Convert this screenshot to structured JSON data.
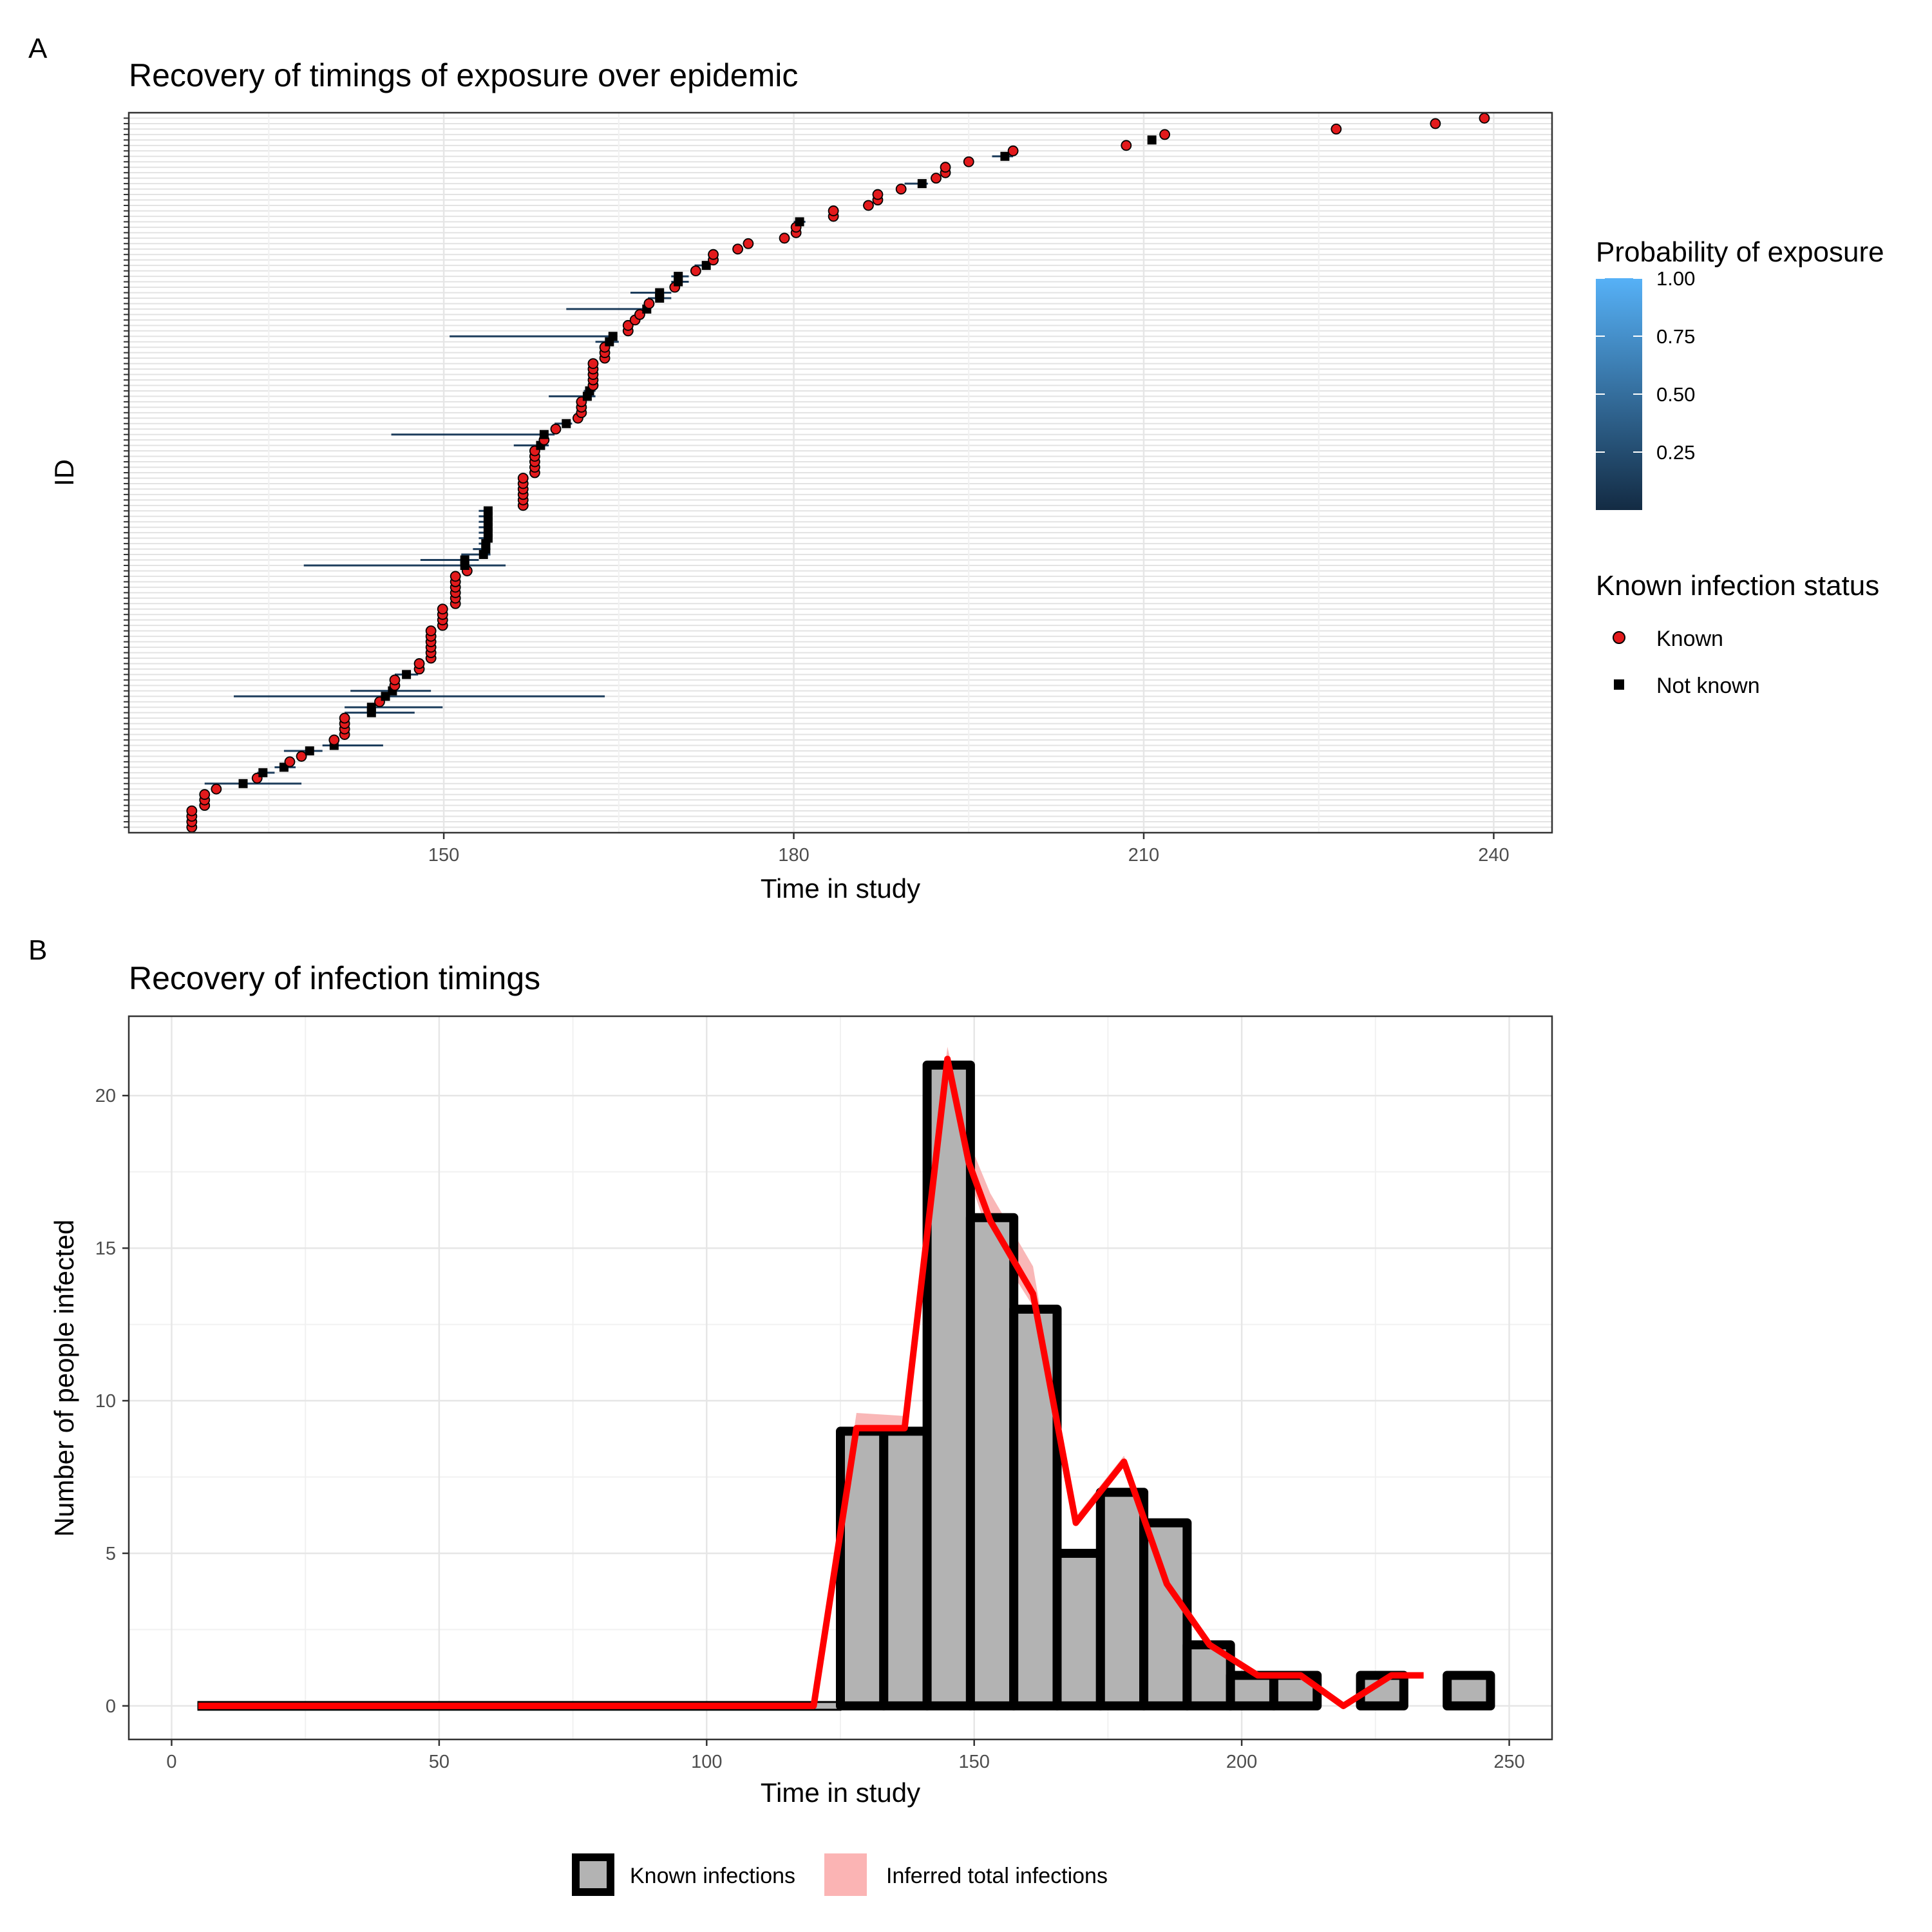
{
  "panels": {
    "a_label": "A",
    "b_label": "B"
  },
  "chart_data": [
    {
      "type": "scatter",
      "title": "Recovery of timings of exposure over epidemic",
      "xlabel": "Time in study",
      "ylabel": "ID",
      "xlim": [
        123,
        245
      ],
      "x_ticks": [
        150,
        180,
        210,
        240
      ],
      "grid": true,
      "legend_position": "right",
      "colorbar": {
        "title": "Probability of exposure",
        "ticks": [
          "1.00",
          "0.75",
          "0.50",
          "0.25"
        ],
        "low_color": "#132B43",
        "high_color": "#56B1F7"
      },
      "legend_shape": {
        "title": "Known infection status",
        "entries": [
          {
            "label": "Known",
            "shape": "circle",
            "color": "#e31a1c"
          },
          {
            "label": "Not known",
            "shape": "square",
            "color": "#000000"
          }
        ]
      },
      "points": [
        {
          "id": 1,
          "x": 128.4,
          "status": "known"
        },
        {
          "id": 2,
          "x": 128.4,
          "status": "known"
        },
        {
          "id": 3,
          "x": 128.4,
          "status": "known"
        },
        {
          "id": 4,
          "x": 128.4,
          "status": "known"
        },
        {
          "id": 5,
          "x": 129.5,
          "status": "known"
        },
        {
          "id": 6,
          "x": 129.5,
          "status": "known"
        },
        {
          "id": 7,
          "x": 129.5,
          "status": "known"
        },
        {
          "id": 8,
          "x": 130.5,
          "status": "known"
        },
        {
          "id": 9,
          "x": 132.8,
          "status": "not_known",
          "lo": 129.5,
          "hi": 137.8
        },
        {
          "id": 10,
          "x": 134.0,
          "status": "known"
        },
        {
          "id": 11,
          "x": 134.5,
          "status": "not_known",
          "lo": 134.0,
          "hi": 135.5
        },
        {
          "id": 12,
          "x": 136.3,
          "status": "not_known",
          "lo": 135.5,
          "hi": 137.3
        },
        {
          "id": 13,
          "x": 136.8,
          "status": "known"
        },
        {
          "id": 14,
          "x": 137.8,
          "status": "known"
        },
        {
          "id": 15,
          "x": 138.5,
          "status": "not_known",
          "lo": 136.3,
          "hi": 139.6
        },
        {
          "id": 16,
          "x": 140.6,
          "status": "not_known",
          "lo": 139.6,
          "hi": 144.8
        },
        {
          "id": 17,
          "x": 140.6,
          "status": "known"
        },
        {
          "id": 18,
          "x": 141.5,
          "status": "known"
        },
        {
          "id": 19,
          "x": 141.5,
          "status": "known"
        },
        {
          "id": 20,
          "x": 141.5,
          "status": "known"
        },
        {
          "id": 21,
          "x": 141.5,
          "status": "known"
        },
        {
          "id": 22,
          "x": 143.8,
          "status": "not_known",
          "lo": 141.5,
          "hi": 147.5
        },
        {
          "id": 23,
          "x": 143.8,
          "status": "not_known",
          "lo": 141.5,
          "hi": 149.9
        },
        {
          "id": 24,
          "x": 144.5,
          "status": "known"
        },
        {
          "id": 25,
          "x": 145.0,
          "status": "not_known",
          "lo": 132.0,
          "hi": 163.8
        },
        {
          "id": 26,
          "x": 145.6,
          "status": "not_known",
          "lo": 142.0,
          "hi": 148.9
        },
        {
          "id": 27,
          "x": 145.8,
          "status": "known"
        },
        {
          "id": 28,
          "x": 145.8,
          "status": "known"
        },
        {
          "id": 29,
          "x": 146.8,
          "status": "not_known",
          "lo": 145.8,
          "hi": 147.8
        },
        {
          "id": 30,
          "x": 147.9,
          "status": "known"
        },
        {
          "id": 31,
          "x": 147.9,
          "status": "known"
        },
        {
          "id": 32,
          "x": 148.9,
          "status": "known"
        },
        {
          "id": 33,
          "x": 148.9,
          "status": "known"
        },
        {
          "id": 34,
          "x": 148.9,
          "status": "known"
        },
        {
          "id": 35,
          "x": 148.9,
          "status": "known"
        },
        {
          "id": 36,
          "x": 148.9,
          "status": "known"
        },
        {
          "id": 37,
          "x": 148.9,
          "status": "known"
        },
        {
          "id": 38,
          "x": 149.9,
          "status": "known"
        },
        {
          "id": 39,
          "x": 149.9,
          "status": "known"
        },
        {
          "id": 40,
          "x": 149.9,
          "status": "known"
        },
        {
          "id": 41,
          "x": 149.9,
          "status": "known"
        },
        {
          "id": 42,
          "x": 151.0,
          "status": "known"
        },
        {
          "id": 43,
          "x": 151.0,
          "status": "known"
        },
        {
          "id": 44,
          "x": 151.0,
          "status": "known"
        },
        {
          "id": 45,
          "x": 151.0,
          "status": "known"
        },
        {
          "id": 46,
          "x": 151.0,
          "status": "known"
        },
        {
          "id": 47,
          "x": 151.0,
          "status": "known"
        },
        {
          "id": 48,
          "x": 152.0,
          "status": "known"
        },
        {
          "id": 49,
          "x": 151.8,
          "status": "not_known",
          "lo": 138.0,
          "hi": 155.3
        },
        {
          "id": 50,
          "x": 151.8,
          "status": "not_known",
          "lo": 148.0,
          "hi": 153.0
        },
        {
          "id": 51,
          "x": 153.4,
          "status": "not_known",
          "lo": 151.5,
          "hi": 154.0
        },
        {
          "id": 52,
          "x": 153.6,
          "status": "not_known",
          "lo": 152.5,
          "hi": 154.0
        },
        {
          "id": 53,
          "x": 153.6,
          "status": "not_known",
          "lo": 153.0,
          "hi": 154.0
        },
        {
          "id": 54,
          "x": 153.8,
          "status": "not_known",
          "lo": 153.0,
          "hi": 154.0
        },
        {
          "id": 55,
          "x": 153.8,
          "status": "not_known",
          "lo": 153.0,
          "hi": 154.0
        },
        {
          "id": 56,
          "x": 153.8,
          "status": "not_known",
          "lo": 153.0,
          "hi": 154.0
        },
        {
          "id": 57,
          "x": 153.8,
          "status": "not_known",
          "lo": 153.0,
          "hi": 154.0
        },
        {
          "id": 58,
          "x": 153.8,
          "status": "not_known",
          "lo": 153.0,
          "hi": 154.0
        },
        {
          "id": 59,
          "x": 153.8,
          "status": "not_known",
          "lo": 153.0,
          "hi": 154.0
        },
        {
          "id": 60,
          "x": 156.8,
          "status": "known"
        },
        {
          "id": 61,
          "x": 156.8,
          "status": "known"
        },
        {
          "id": 62,
          "x": 156.8,
          "status": "known"
        },
        {
          "id": 63,
          "x": 156.8,
          "status": "known"
        },
        {
          "id": 64,
          "x": 156.8,
          "status": "known"
        },
        {
          "id": 65,
          "x": 156.8,
          "status": "known"
        },
        {
          "id": 66,
          "x": 157.8,
          "status": "known"
        },
        {
          "id": 67,
          "x": 157.8,
          "status": "known"
        },
        {
          "id": 68,
          "x": 157.8,
          "status": "known"
        },
        {
          "id": 69,
          "x": 157.8,
          "status": "known"
        },
        {
          "id": 70,
          "x": 157.8,
          "status": "known"
        },
        {
          "id": 71,
          "x": 158.3,
          "status": "not_known",
          "lo": 156.0,
          "hi": 159.0
        },
        {
          "id": 72,
          "x": 158.6,
          "status": "known"
        },
        {
          "id": 73,
          "x": 158.6,
          "status": "not_known",
          "lo": 145.5,
          "hi": 159.5
        },
        {
          "id": 74,
          "x": 159.6,
          "status": "known"
        },
        {
          "id": 75,
          "x": 160.5,
          "status": "not_known",
          "lo": 159.5,
          "hi": 161.0
        },
        {
          "id": 76,
          "x": 161.5,
          "status": "known"
        },
        {
          "id": 77,
          "x": 161.8,
          "status": "known"
        },
        {
          "id": 78,
          "x": 161.8,
          "status": "known"
        },
        {
          "id": 79,
          "x": 161.8,
          "status": "known"
        },
        {
          "id": 80,
          "x": 162.3,
          "status": "not_known",
          "lo": 159.0,
          "hi": 163.0
        },
        {
          "id": 81,
          "x": 162.5,
          "status": "not_known",
          "lo": 162.0,
          "hi": 163.0
        },
        {
          "id": 82,
          "x": 162.8,
          "status": "known"
        },
        {
          "id": 83,
          "x": 162.8,
          "status": "known"
        },
        {
          "id": 84,
          "x": 162.8,
          "status": "known"
        },
        {
          "id": 85,
          "x": 162.8,
          "status": "known"
        },
        {
          "id": 86,
          "x": 162.8,
          "status": "known"
        },
        {
          "id": 87,
          "x": 163.8,
          "status": "known"
        },
        {
          "id": 88,
          "x": 163.8,
          "status": "known"
        },
        {
          "id": 89,
          "x": 163.8,
          "status": "known"
        },
        {
          "id": 90,
          "x": 164.2,
          "status": "not_known",
          "lo": 163.0,
          "hi": 165.0
        },
        {
          "id": 91,
          "x": 164.5,
          "status": "not_known",
          "lo": 150.5,
          "hi": 164.5
        },
        {
          "id": 92,
          "x": 165.8,
          "status": "known"
        },
        {
          "id": 93,
          "x": 165.8,
          "status": "known"
        },
        {
          "id": 94,
          "x": 166.4,
          "status": "known"
        },
        {
          "id": 95,
          "x": 166.8,
          "status": "known"
        },
        {
          "id": 96,
          "x": 167.4,
          "status": "not_known",
          "lo": 160.5,
          "hi": 167.5
        },
        {
          "id": 97,
          "x": 167.6,
          "status": "known"
        },
        {
          "id": 98,
          "x": 168.5,
          "status": "not_known",
          "lo": 167.5,
          "hi": 169.5
        },
        {
          "id": 99,
          "x": 168.5,
          "status": "not_known",
          "lo": 166.0,
          "hi": 169.5
        },
        {
          "id": 100,
          "x": 169.8,
          "status": "known"
        },
        {
          "id": 101,
          "x": 170.1,
          "status": "not_known",
          "lo": 169.5,
          "hi": 171.0
        },
        {
          "id": 102,
          "x": 170.1,
          "status": "not_known",
          "lo": 169.5,
          "hi": 171.0
        },
        {
          "id": 103,
          "x": 171.6,
          "status": "known"
        },
        {
          "id": 104,
          "x": 172.5,
          "status": "not_known",
          "lo": 171.5,
          "hi": 172.8
        },
        {
          "id": 105,
          "x": 173.1,
          "status": "known"
        },
        {
          "id": 106,
          "x": 173.1,
          "status": "known"
        },
        {
          "id": 107,
          "x": 175.2,
          "status": "known"
        },
        {
          "id": 108,
          "x": 176.1,
          "status": "known"
        },
        {
          "id": 109,
          "x": 179.2,
          "status": "known"
        },
        {
          "id": 110,
          "x": 180.2,
          "status": "known"
        },
        {
          "id": 111,
          "x": 180.2,
          "status": "known"
        },
        {
          "id": 112,
          "x": 180.5,
          "status": "not_known",
          "lo": 180.0,
          "hi": 181.0
        },
        {
          "id": 113,
          "x": 183.4,
          "status": "known"
        },
        {
          "id": 114,
          "x": 183.4,
          "status": "known"
        },
        {
          "id": 115,
          "x": 186.4,
          "status": "known"
        },
        {
          "id": 116,
          "x": 187.2,
          "status": "known"
        },
        {
          "id": 117,
          "x": 187.2,
          "status": "known"
        },
        {
          "id": 118,
          "x": 189.2,
          "status": "known"
        },
        {
          "id": 119,
          "x": 191.0,
          "status": "not_known",
          "lo": 189.5,
          "hi": 191.5
        },
        {
          "id": 120,
          "x": 192.2,
          "status": "known"
        },
        {
          "id": 121,
          "x": 193.0,
          "status": "known"
        },
        {
          "id": 122,
          "x": 193.0,
          "status": "known"
        },
        {
          "id": 123,
          "x": 195.0,
          "status": "known"
        },
        {
          "id": 124,
          "x": 198.1,
          "status": "not_known",
          "lo": 197.0,
          "hi": 198.8
        },
        {
          "id": 125,
          "x": 198.8,
          "status": "known"
        },
        {
          "id": 126,
          "x": 208.5,
          "status": "known"
        },
        {
          "id": 127,
          "x": 210.7,
          "status": "not_known"
        },
        {
          "id": 128,
          "x": 211.8,
          "status": "known"
        },
        {
          "id": 129,
          "x": 226.5,
          "status": "known"
        },
        {
          "id": 130,
          "x": 235.0,
          "status": "known"
        },
        {
          "id": 131,
          "x": 239.2,
          "status": "known"
        }
      ]
    },
    {
      "type": "bar",
      "title": "Recovery of infection timings",
      "xlabel": "Time in study",
      "ylabel": "Number of people infected",
      "xlim": [
        -8,
        258
      ],
      "ylim": [
        -1.1,
        22.6
      ],
      "x_ticks": [
        0,
        50,
        100,
        150,
        200,
        250
      ],
      "y_ticks": [
        0,
        5,
        10,
        15,
        20
      ],
      "grid": true,
      "legend_position": "bottom",
      "legend": [
        {
          "label": "Known infections",
          "fill": "#b3b3b3",
          "stroke": "#000000"
        },
        {
          "label": "Inferred total infections",
          "fill": "#fbb4b4"
        }
      ],
      "bin_width": 8.1,
      "bins": [
        {
          "x_start": 125,
          "value": 9
        },
        {
          "x_start": 133.1,
          "value": 9
        },
        {
          "x_start": 141.2,
          "value": 21
        },
        {
          "x_start": 149.3,
          "value": 16
        },
        {
          "x_start": 157.4,
          "value": 13
        },
        {
          "x_start": 165.5,
          "value": 5
        },
        {
          "x_start": 173.6,
          "value": 7
        },
        {
          "x_start": 181.7,
          "value": 6
        },
        {
          "x_start": 189.8,
          "value": 2
        },
        {
          "x_start": 197.9,
          "value": 1
        },
        {
          "x_start": 206.0,
          "value": 1
        },
        {
          "x_start": 214.1,
          "value": 0
        },
        {
          "x_start": 222.2,
          "value": 1
        },
        {
          "x_start": 230.3,
          "value": 0
        },
        {
          "x_start": 238.4,
          "value": 1
        }
      ],
      "zero_bar": {
        "x_start": 5,
        "x_end": 125,
        "value": 0
      },
      "series": [
        {
          "name": "Inferred total infections",
          "x": [
            5,
            120,
            128,
            137,
            145,
            149,
            153,
            161,
            169,
            178,
            186,
            194,
            203,
            211,
            219,
            228,
            234
          ],
          "values": [
            0,
            0,
            9.1,
            9.1,
            21.2,
            17.8,
            15.9,
            13.5,
            6,
            8,
            4,
            2,
            1,
            1,
            0,
            1,
            1
          ],
          "lower": [
            0,
            0,
            8.9,
            8.9,
            21.0,
            17.3,
            15.3,
            13.1,
            5.9,
            7.9,
            3.9,
            1.9,
            0.95,
            0.95,
            0,
            0.95,
            0.95
          ],
          "upper": [
            0,
            0,
            9.6,
            9.5,
            21.6,
            18.5,
            16.8,
            14.4,
            6.2,
            8.2,
            4.1,
            2.1,
            1.05,
            1.05,
            0,
            1.05,
            1.05
          ]
        }
      ]
    }
  ]
}
